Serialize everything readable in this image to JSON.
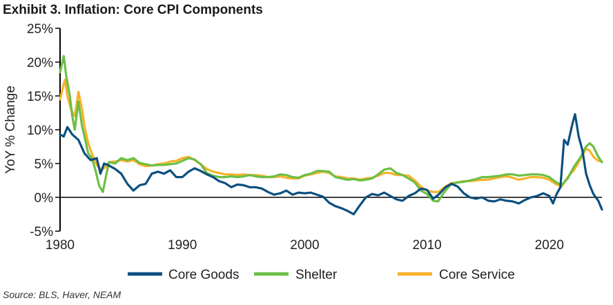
{
  "title": "Exhibit 3. Inflation: Core CPI Components",
  "source": "Source: BLS, Haver, NEAM",
  "chart_data": {
    "type": "line",
    "title": "Exhibit 3. Inflation: Core CPI Components",
    "xlabel": "",
    "ylabel": "YoY % Change",
    "xlim": [
      1980,
      2024.3
    ],
    "ylim": [
      -5,
      25
    ],
    "y_ticks": [
      -5,
      0,
      5,
      10,
      15,
      20,
      25
    ],
    "y_tick_labels": [
      "-5%",
      "0%",
      "5%",
      "10%",
      "15%",
      "20%",
      "25%"
    ],
    "x_ticks": [
      1980,
      1990,
      2000,
      2010,
      2020
    ],
    "x_tick_labels": [
      "1980",
      "1990",
      "2000",
      "2010",
      "2020"
    ],
    "grid": false,
    "legend_position": "bottom",
    "series": [
      {
        "name": "Core Goods",
        "color": "#0b4f7f",
        "points": [
          [
            1980,
            9.3
          ],
          [
            1980.3,
            9.0
          ],
          [
            1980.6,
            10.4
          ],
          [
            1981,
            9.3
          ],
          [
            1981.5,
            8.5
          ],
          [
            1982,
            6.5
          ],
          [
            1982.5,
            5.5
          ],
          [
            1983,
            5.8
          ],
          [
            1983.3,
            3.5
          ],
          [
            1983.6,
            5.0
          ],
          [
            1984,
            4.7
          ],
          [
            1984.5,
            4.2
          ],
          [
            1985,
            3.5
          ],
          [
            1985.5,
            2.0
          ],
          [
            1986,
            1.0
          ],
          [
            1986.5,
            1.8
          ],
          [
            1987,
            2.0
          ],
          [
            1987.5,
            3.5
          ],
          [
            1988,
            3.8
          ],
          [
            1988.5,
            3.5
          ],
          [
            1989,
            4.0
          ],
          [
            1989.5,
            3.0
          ],
          [
            1990,
            3.0
          ],
          [
            1990.5,
            3.8
          ],
          [
            1991,
            4.3
          ],
          [
            1991.5,
            3.9
          ],
          [
            1992,
            3.4
          ],
          [
            1992.5,
            3.0
          ],
          [
            1993,
            2.4
          ],
          [
            1993.5,
            2.1
          ],
          [
            1994,
            1.5
          ],
          [
            1994.5,
            1.9
          ],
          [
            1995,
            1.8
          ],
          [
            1995.5,
            1.5
          ],
          [
            1996,
            1.5
          ],
          [
            1996.5,
            1.3
          ],
          [
            1997,
            0.8
          ],
          [
            1997.5,
            0.4
          ],
          [
            1998,
            0.6
          ],
          [
            1998.5,
            1.0
          ],
          [
            1999,
            0.4
          ],
          [
            1999.5,
            0.7
          ],
          [
            2000,
            0.6
          ],
          [
            2000.5,
            0.7
          ],
          [
            2001,
            0.4
          ],
          [
            2001.5,
            0.1
          ],
          [
            2002,
            -0.8
          ],
          [
            2002.5,
            -1.3
          ],
          [
            2003,
            -1.6
          ],
          [
            2003.5,
            -2.0
          ],
          [
            2004,
            -2.5
          ],
          [
            2004.5,
            -1.2
          ],
          [
            2005,
            0.0
          ],
          [
            2005.5,
            0.5
          ],
          [
            2006,
            0.3
          ],
          [
            2006.5,
            0.7
          ],
          [
            2007,
            0.2
          ],
          [
            2007.5,
            -0.3
          ],
          [
            2008,
            -0.5
          ],
          [
            2008.5,
            0.2
          ],
          [
            2009,
            0.6
          ],
          [
            2009.5,
            1.3
          ],
          [
            2010,
            1.1
          ],
          [
            2010.5,
            -0.2
          ],
          [
            2011,
            0.5
          ],
          [
            2011.5,
            1.5
          ],
          [
            2012,
            2.0
          ],
          [
            2012.5,
            1.6
          ],
          [
            2013,
            0.6
          ],
          [
            2013.5,
            0.0
          ],
          [
            2014,
            -0.2
          ],
          [
            2014.5,
            0.0
          ],
          [
            2015,
            -0.5
          ],
          [
            2015.5,
            -0.6
          ],
          [
            2016,
            -0.3
          ],
          [
            2016.5,
            -0.5
          ],
          [
            2017,
            -0.6
          ],
          [
            2017.5,
            -0.9
          ],
          [
            2018,
            -0.4
          ],
          [
            2018.5,
            0.0
          ],
          [
            2019,
            0.2
          ],
          [
            2019.5,
            0.6
          ],
          [
            2020,
            0.2
          ],
          [
            2020.3,
            -0.9
          ],
          [
            2020.6,
            0.5
          ],
          [
            2020.9,
            1.5
          ],
          [
            2021.2,
            8.5
          ],
          [
            2021.5,
            7.8
          ],
          [
            2021.9,
            11.0
          ],
          [
            2022.1,
            12.3
          ],
          [
            2022.4,
            9.0
          ],
          [
            2022.7,
            7.0
          ],
          [
            2023,
            3.5
          ],
          [
            2023.3,
            1.8
          ],
          [
            2023.6,
            0.5
          ],
          [
            2024,
            -0.5
          ],
          [
            2024.3,
            -1.8
          ]
        ]
      },
      {
        "name": "Shelter",
        "color": "#6bbf45",
        "points": [
          [
            1980,
            18.5
          ],
          [
            1980.3,
            20.9
          ],
          [
            1980.5,
            18.0
          ],
          [
            1980.8,
            15.0
          ],
          [
            1981,
            12.0
          ],
          [
            1981.2,
            10.0
          ],
          [
            1981.5,
            14.2
          ],
          [
            1981.8,
            10.5
          ],
          [
            1982,
            9.0
          ],
          [
            1982.3,
            6.5
          ],
          [
            1982.6,
            5.8
          ],
          [
            1982.9,
            4.0
          ],
          [
            1983.2,
            1.7
          ],
          [
            1983.5,
            0.8
          ],
          [
            1983.8,
            3.5
          ],
          [
            1984,
            5.2
          ],
          [
            1984.5,
            5.0
          ],
          [
            1985,
            5.8
          ],
          [
            1985.5,
            5.5
          ],
          [
            1986,
            5.8
          ],
          [
            1986.5,
            5.1
          ],
          [
            1987,
            4.9
          ],
          [
            1987.5,
            4.7
          ],
          [
            1988,
            4.8
          ],
          [
            1988.5,
            4.8
          ],
          [
            1989,
            4.9
          ],
          [
            1989.5,
            5.0
          ],
          [
            1990,
            5.4
          ],
          [
            1990.5,
            5.8
          ],
          [
            1991,
            5.6
          ],
          [
            1991.5,
            4.9
          ],
          [
            1992,
            3.6
          ],
          [
            1992.5,
            3.2
          ],
          [
            1993,
            3.0
          ],
          [
            1993.5,
            3.0
          ],
          [
            1994,
            3.1
          ],
          [
            1994.5,
            3.0
          ],
          [
            1995,
            3.1
          ],
          [
            1995.5,
            3.3
          ],
          [
            1996,
            3.1
          ],
          [
            1996.5,
            3.0
          ],
          [
            1997,
            3.0
          ],
          [
            1997.5,
            3.1
          ],
          [
            1998,
            3.4
          ],
          [
            1998.5,
            3.3
          ],
          [
            1999,
            3.0
          ],
          [
            1999.5,
            2.9
          ],
          [
            2000,
            3.3
          ],
          [
            2000.5,
            3.5
          ],
          [
            2001,
            3.9
          ],
          [
            2001.5,
            3.9
          ],
          [
            2002,
            3.8
          ],
          [
            2002.5,
            3.0
          ],
          [
            2003,
            2.8
          ],
          [
            2003.5,
            2.6
          ],
          [
            2004,
            2.7
          ],
          [
            2004.5,
            2.5
          ],
          [
            2005,
            2.6
          ],
          [
            2005.5,
            2.8
          ],
          [
            2006,
            3.4
          ],
          [
            2006.5,
            4.1
          ],
          [
            2007,
            4.3
          ],
          [
            2007.5,
            3.6
          ],
          [
            2008,
            3.3
          ],
          [
            2008.5,
            2.8
          ],
          [
            2009,
            2.2
          ],
          [
            2009.5,
            1.0
          ],
          [
            2010,
            0.5
          ],
          [
            2010.5,
            -0.5
          ],
          [
            2010.9,
            -0.6
          ],
          [
            2011.3,
            0.5
          ],
          [
            2011.6,
            1.2
          ],
          [
            2012,
            2.0
          ],
          [
            2012.5,
            2.2
          ],
          [
            2013,
            2.3
          ],
          [
            2013.5,
            2.5
          ],
          [
            2014,
            2.7
          ],
          [
            2014.5,
            3.0
          ],
          [
            2015,
            3.0
          ],
          [
            2015.5,
            3.1
          ],
          [
            2016,
            3.2
          ],
          [
            2016.5,
            3.4
          ],
          [
            2017,
            3.4
          ],
          [
            2017.5,
            3.2
          ],
          [
            2018,
            3.3
          ],
          [
            2018.5,
            3.4
          ],
          [
            2019,
            3.4
          ],
          [
            2019.5,
            3.3
          ],
          [
            2020,
            3.0
          ],
          [
            2020.5,
            2.3
          ],
          [
            2021,
            1.8
          ],
          [
            2021.5,
            2.8
          ],
          [
            2022,
            4.5
          ],
          [
            2022.5,
            5.8
          ],
          [
            2023,
            7.5
          ],
          [
            2023.3,
            8.0
          ],
          [
            2023.6,
            7.5
          ],
          [
            2024,
            6.0
          ],
          [
            2024.3,
            5.2
          ]
        ]
      },
      {
        "name": "Core Service",
        "color": "#f7b22b",
        "points": [
          [
            1980,
            14.5
          ],
          [
            1980.2,
            16.0
          ],
          [
            1980.4,
            17.4
          ],
          [
            1980.6,
            15.0
          ],
          [
            1980.9,
            13.0
          ],
          [
            1981.2,
            12.0
          ],
          [
            1981.5,
            15.6
          ],
          [
            1981.8,
            13.0
          ],
          [
            1982,
            10.5
          ],
          [
            1982.3,
            8.0
          ],
          [
            1982.6,
            6.5
          ],
          [
            1983,
            4.8
          ],
          [
            1983.4,
            4.0
          ],
          [
            1983.7,
            4.5
          ],
          [
            1984,
            5.2
          ],
          [
            1984.5,
            5.3
          ],
          [
            1985,
            5.5
          ],
          [
            1985.5,
            5.3
          ],
          [
            1986,
            5.5
          ],
          [
            1986.5,
            4.9
          ],
          [
            1987,
            4.6
          ],
          [
            1987.5,
            4.7
          ],
          [
            1988,
            4.9
          ],
          [
            1988.5,
            5.0
          ],
          [
            1989,
            5.3
          ],
          [
            1989.5,
            5.4
          ],
          [
            1990,
            5.8
          ],
          [
            1990.5,
            6.0
          ],
          [
            1991,
            5.5
          ],
          [
            1991.5,
            4.9
          ],
          [
            1992,
            4.2
          ],
          [
            1992.5,
            3.8
          ],
          [
            1993,
            3.6
          ],
          [
            1993.5,
            3.4
          ],
          [
            1994,
            3.4
          ],
          [
            1994.5,
            3.3
          ],
          [
            1995,
            3.4
          ],
          [
            1995.5,
            3.3
          ],
          [
            1996,
            3.3
          ],
          [
            1996.5,
            3.2
          ],
          [
            1997,
            3.0
          ],
          [
            1997.5,
            3.0
          ],
          [
            1998,
            3.1
          ],
          [
            1998.5,
            2.9
          ],
          [
            1999,
            2.8
          ],
          [
            1999.5,
            2.8
          ],
          [
            2000,
            3.2
          ],
          [
            2000.5,
            3.4
          ],
          [
            2001,
            3.6
          ],
          [
            2001.5,
            3.8
          ],
          [
            2002,
            3.6
          ],
          [
            2002.5,
            3.1
          ],
          [
            2003,
            3.0
          ],
          [
            2003.5,
            2.8
          ],
          [
            2004,
            2.8
          ],
          [
            2004.5,
            2.6
          ],
          [
            2005,
            2.8
          ],
          [
            2005.5,
            2.9
          ],
          [
            2006,
            3.2
          ],
          [
            2006.5,
            3.6
          ],
          [
            2007,
            3.6
          ],
          [
            2007.5,
            3.3
          ],
          [
            2008,
            3.3
          ],
          [
            2008.5,
            3.2
          ],
          [
            2009,
            2.5
          ],
          [
            2009.5,
            1.6
          ],
          [
            2010,
            1.0
          ],
          [
            2010.5,
            0.8
          ],
          [
            2010.9,
            0.8
          ],
          [
            2011.3,
            1.3
          ],
          [
            2011.6,
            1.7
          ],
          [
            2012,
            2.1
          ],
          [
            2012.5,
            2.2
          ],
          [
            2013,
            2.4
          ],
          [
            2013.5,
            2.4
          ],
          [
            2014,
            2.5
          ],
          [
            2014.5,
            2.6
          ],
          [
            2015,
            2.6
          ],
          [
            2015.5,
            2.8
          ],
          [
            2016,
            3.0
          ],
          [
            2016.5,
            3.1
          ],
          [
            2017,
            2.9
          ],
          [
            2017.5,
            2.6
          ],
          [
            2018,
            2.8
          ],
          [
            2018.5,
            3.0
          ],
          [
            2019,
            3.0
          ],
          [
            2019.5,
            2.9
          ],
          [
            2020,
            2.6
          ],
          [
            2020.5,
            2.0
          ],
          [
            2021,
            1.6
          ],
          [
            2021.5,
            3.0
          ],
          [
            2022,
            4.0
          ],
          [
            2022.5,
            5.5
          ],
          [
            2023,
            7.2
          ],
          [
            2023.3,
            6.9
          ],
          [
            2023.6,
            6.0
          ],
          [
            2024,
            5.4
          ],
          [
            2024.3,
            5.3
          ]
        ]
      }
    ]
  }
}
